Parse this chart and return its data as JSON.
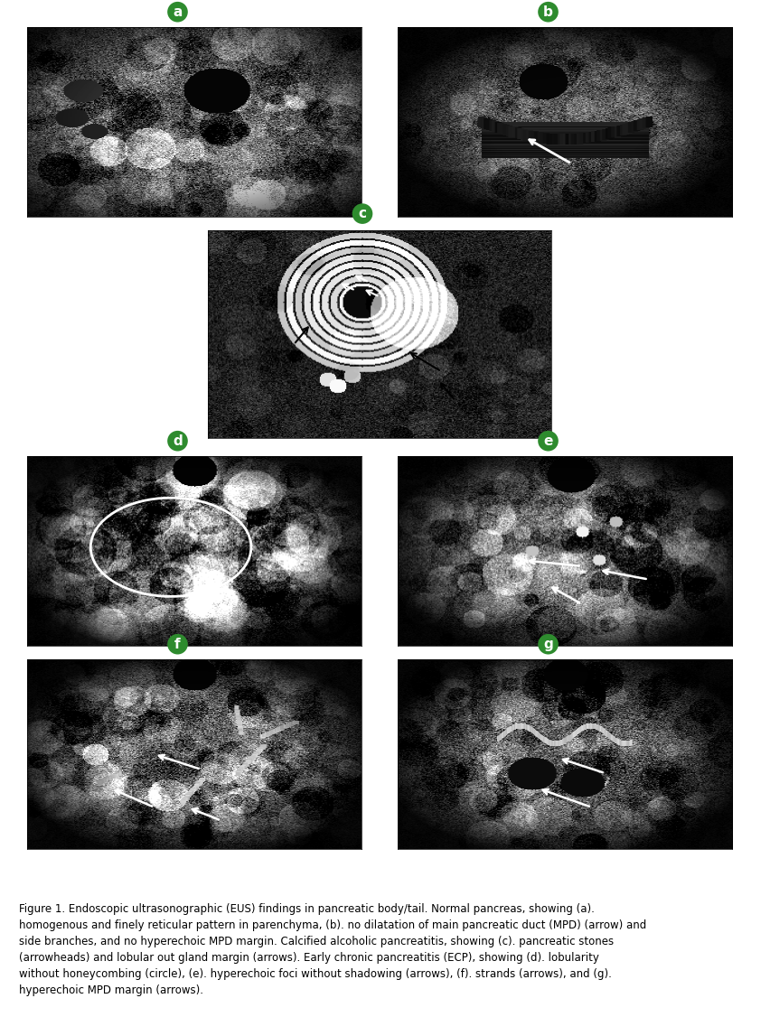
{
  "figure_title": "Figure 1. Endoscopic ultrasonographic (EUS) findings in pancreatic body/tail. Normal pancreas, showing (a). homogenous and finely reticular pattern in parenchyma, (b). no dilatation of main pancreatic duct (MPD) (arrow) and side branches, and no hyperechoic MPD margin. Calcified alcoholic pancreatitis, showing (c). pancreatic stones (arrowheads) and lobular out gland margin (arrows). Early chronic pancreatitis (ECP), showing (d). lobularity without honeycombing (circle), (e). hyperechoic foci without shadowing (arrows), (f). strands (arrows), and (g). hyperechoic MPD margin (arrows).",
  "labels": [
    "a",
    "b",
    "c",
    "d",
    "e",
    "f",
    "g"
  ],
  "label_color": "#ffffff",
  "label_bg_color": "#2e8b2e",
  "background_color": "#ffffff",
  "layout": {
    "top_row": [
      "a",
      "b"
    ],
    "middle_single": [
      "c"
    ],
    "second_row": [
      "d",
      "e"
    ],
    "bottom_row": [
      "f",
      "g"
    ]
  },
  "caption_fontsize": 8.5,
  "caption_color": "#000000",
  "label_fontsize": 11
}
